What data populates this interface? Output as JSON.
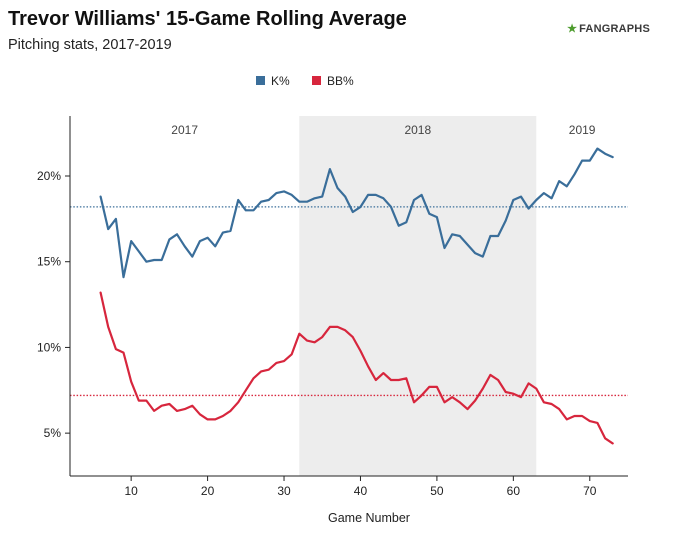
{
  "header": {
    "title": "Trevor Williams' 15-Game Rolling Average",
    "subtitle": "Pitching stats, 2017-2019",
    "logo_mark": "★",
    "logo_text": "FANGRAPHS"
  },
  "chart_data": {
    "type": "line",
    "title": "Trevor Williams' 15-Game Rolling Average",
    "subtitle": "Pitching stats, 2017-2019",
    "xlabel": "Game Number",
    "ylabel": "",
    "xlim": [
      2,
      75
    ],
    "ylim": [
      2.5,
      23.5
    ],
    "xticks": [
      10,
      20,
      30,
      40,
      50,
      60,
      70
    ],
    "yticks": [
      5,
      10,
      15,
      20
    ],
    "ytick_labels": [
      "5%",
      "10%",
      "15%",
      "20%"
    ],
    "grid": false,
    "legend": {
      "placement": "top-center"
    },
    "shaded_regions": [
      {
        "label": "2017",
        "x_start": 2,
        "x_end": 32,
        "shaded": false
      },
      {
        "label": "2018",
        "x_start": 32,
        "x_end": 63,
        "shaded": true,
        "color": "#ededed"
      },
      {
        "label": "2019",
        "x_start": 63,
        "x_end": 75,
        "shaded": false
      }
    ],
    "reference_lines": [
      {
        "series": "K%",
        "y": 18.2,
        "color": "#3a6e9a"
      },
      {
        "series": "BB%",
        "y": 7.2,
        "color": "#d7263d"
      }
    ],
    "series": [
      {
        "name": "K%",
        "color": "#3a6e9a",
        "x": [
          6,
          7,
          8,
          9,
          10,
          11,
          12,
          13,
          14,
          15,
          16,
          17,
          18,
          19,
          20,
          21,
          22,
          23,
          24,
          25,
          26,
          27,
          28,
          29,
          30,
          31,
          32,
          33,
          34,
          35,
          36,
          37,
          38,
          39,
          40,
          41,
          42,
          43,
          44,
          45,
          46,
          47,
          48,
          49,
          50,
          51,
          52,
          53,
          54,
          55,
          56,
          57,
          58,
          59,
          60,
          61,
          62,
          63,
          64,
          65,
          66,
          67,
          68,
          69,
          70,
          71,
          72,
          73
        ],
        "values": [
          18.8,
          16.9,
          17.5,
          14.1,
          16.2,
          15.6,
          15.0,
          15.1,
          15.1,
          16.3,
          16.6,
          15.9,
          15.3,
          16.2,
          16.4,
          15.9,
          16.7,
          16.8,
          18.6,
          18.0,
          18.0,
          18.5,
          18.6,
          19.0,
          19.1,
          18.9,
          18.5,
          18.5,
          18.7,
          18.8,
          20.4,
          19.3,
          18.8,
          17.9,
          18.2,
          18.9,
          18.9,
          18.7,
          18.2,
          17.1,
          17.3,
          18.6,
          18.9,
          17.8,
          17.6,
          15.8,
          16.6,
          16.5,
          16.0,
          15.5,
          15.3,
          16.5,
          16.5,
          17.4,
          18.6,
          18.8,
          18.1,
          18.6,
          19.0,
          18.7,
          19.7,
          19.4,
          20.1,
          20.9,
          20.9,
          21.6,
          21.3,
          21.1
        ]
      },
      {
        "name": "BB%",
        "color": "#d7263d",
        "x": [
          6,
          7,
          8,
          9,
          10,
          11,
          12,
          13,
          14,
          15,
          16,
          17,
          18,
          19,
          20,
          21,
          22,
          23,
          24,
          25,
          26,
          27,
          28,
          29,
          30,
          31,
          32,
          33,
          34,
          35,
          36,
          37,
          38,
          39,
          40,
          41,
          42,
          43,
          44,
          45,
          46,
          47,
          48,
          49,
          50,
          51,
          52,
          53,
          54,
          55,
          56,
          57,
          58,
          59,
          60,
          61,
          62,
          63,
          64,
          65,
          66,
          67,
          68,
          69,
          70,
          71,
          72,
          73
        ],
        "values": [
          13.2,
          11.2,
          9.9,
          9.7,
          8.0,
          6.9,
          6.9,
          6.3,
          6.6,
          6.7,
          6.3,
          6.4,
          6.6,
          6.1,
          5.8,
          5.8,
          6.0,
          6.3,
          6.8,
          7.5,
          8.2,
          8.6,
          8.7,
          9.1,
          9.2,
          9.6,
          10.8,
          10.4,
          10.3,
          10.6,
          11.2,
          11.2,
          11.0,
          10.6,
          9.8,
          8.9,
          8.1,
          8.5,
          8.1,
          8.1,
          8.2,
          6.8,
          7.2,
          7.7,
          7.7,
          6.8,
          7.1,
          6.8,
          6.4,
          6.9,
          7.6,
          8.4,
          8.1,
          7.4,
          7.3,
          7.1,
          7.9,
          7.6,
          6.8,
          6.7,
          6.4,
          5.8,
          6.0,
          6.0,
          5.7,
          5.6,
          4.7,
          4.4
        ]
      }
    ]
  }
}
